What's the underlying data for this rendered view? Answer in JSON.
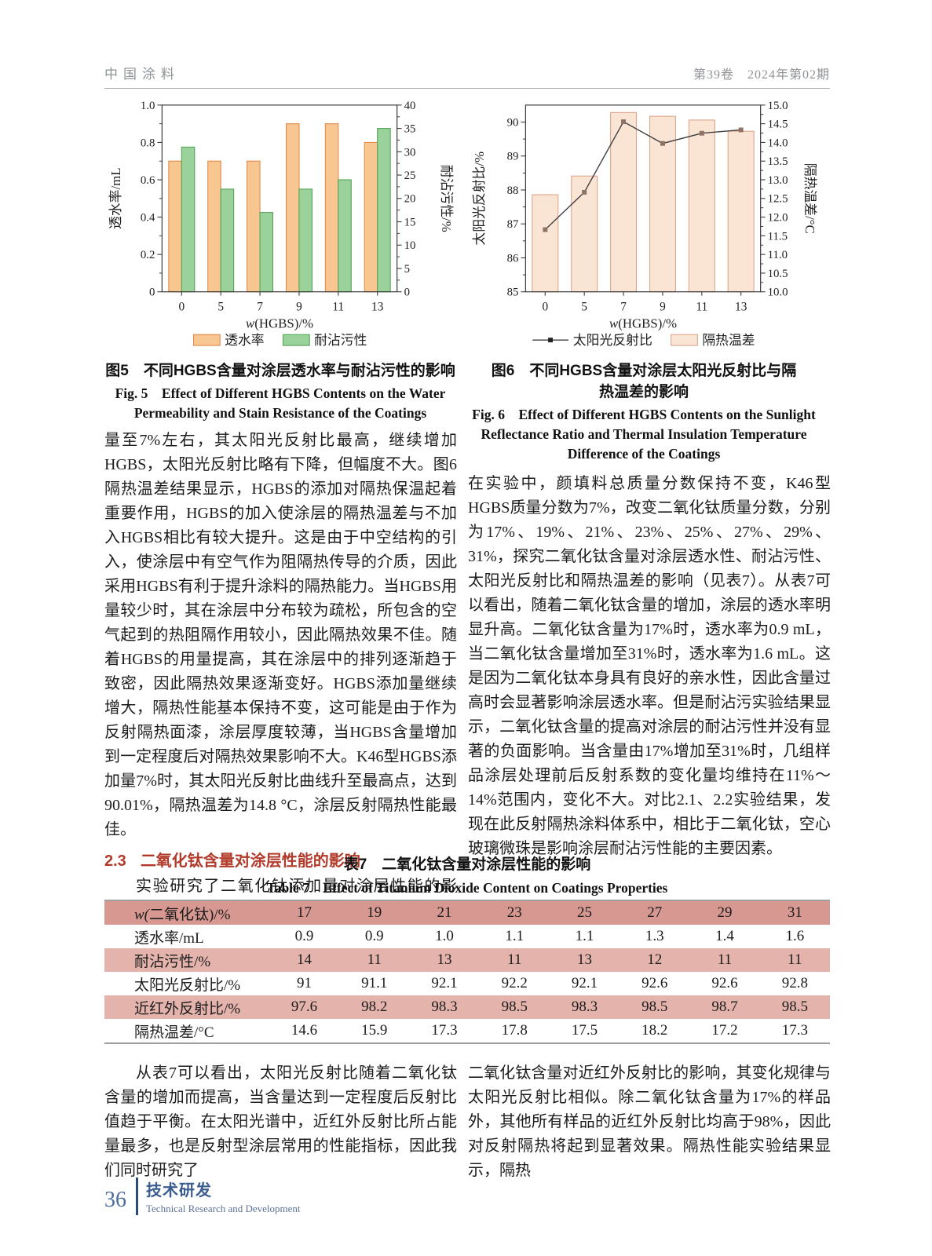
{
  "page_header": {
    "journal": "中国涂料",
    "issue": "第39卷　2024年第02期"
  },
  "chart_data": [
    {
      "id": "fig5",
      "type": "bar",
      "caption_cn": "图5　不同HGBS含量对涂层透水率与耐沾污性的影响",
      "caption_en": "Fig. 5　Effect of Different HGBS Contents on the Water Permeability and Stain Resistance of the Coatings",
      "categories": [
        "0",
        "5",
        "7",
        "9",
        "11",
        "13"
      ],
      "xlabel": "w(HGBS)/%",
      "left_axis": {
        "label": "透水率/mL",
        "min": 0,
        "max": 1.0,
        "tick_step": 0.2,
        "decimals": 1
      },
      "right_axis": {
        "label": "耐沾污性/%",
        "min": 0,
        "max": 40,
        "tick_step": 5,
        "decimals": 0
      },
      "grid": false,
      "legend_position": "bottom",
      "series": [
        {
          "name": "透水率",
          "type": "bar",
          "axis": "left",
          "values": [
            0.7,
            0.7,
            0.7,
            0.9,
            0.9,
            0.8
          ],
          "fill": "#F8C690",
          "stroke": "#E08B4C"
        },
        {
          "name": "耐沾污性",
          "type": "bar",
          "axis": "right",
          "values": [
            31,
            22,
            17,
            22,
            24,
            35
          ],
          "fill": "#9BD29B",
          "stroke": "#55A457"
        }
      ]
    },
    {
      "id": "fig6",
      "type": "bar+line",
      "caption_cn": "图6　不同HGBS含量对涂层太阳光反射比与隔热温差的影响",
      "caption_en": "Fig. 6　Effect of Different HGBS Contents on the Sunlight Reflectance Ratio and Thermal Insulation Temperature Difference of the Coatings",
      "categories": [
        "0",
        "5",
        "7",
        "9",
        "11",
        "13"
      ],
      "xlabel": "w(HGBS)/%",
      "left_axis": {
        "label": "太阳光反射比/%",
        "min": 85,
        "max": 90.5,
        "tick_step": 1,
        "tick_max": 90,
        "decimals": 0
      },
      "right_axis": {
        "label": "隔热温差/°C",
        "min": 10,
        "max": 15,
        "tick_step": 0.5,
        "decimals": 1
      },
      "grid": false,
      "legend_position": "bottom",
      "series": [
        {
          "name": "太阳光反射比",
          "type": "line",
          "axis": "left",
          "values": [
            86.83,
            87.93,
            90.01,
            89.37,
            89.67,
            89.77
          ],
          "stroke": "#3F3F3F",
          "marker_fill": "#8D7265"
        },
        {
          "name": "隔热温差",
          "type": "bar",
          "axis": "right",
          "values": [
            12.6,
            13.1,
            14.8,
            14.7,
            14.6,
            14.3
          ],
          "fill": "#FAE4D4",
          "stroke": "#DCA58B"
        }
      ]
    }
  ],
  "sections": {
    "col1_p1": "量至7%左右，其太阳光反射比最高，继续增加HGBS，太阳光反射比略有下降，但幅度不大。图6隔热温差结果显示，HGBS的添加对隔热保温起着重要作用，HGBS的加入使涂层的隔热温差与不加入HGBS相比有较大提升。这是由于中空结构的引入，使涂层中有空气作为阻隔热传导的介质，因此采用HGBS有利于提升涂料的隔热能力。当HGBS用量较少时，其在涂层中分布较为疏松，所包含的空气起到的热阻隔作用较小，因此隔热效果不佳。随着HGBS的用量提高，其在涂层中的排列逐渐趋于致密，因此隔热效果逐渐变好。HGBS添加量继续增大，隔热性能基本保持不变，这可能是由于作为反射隔热面漆，涂层厚度较薄，当HGBS含量增加到一定程度后对隔热效果影响不大。K46型HGBS添加量7%时，其太阳光反射比曲线升至最高点，达到90.01%，隔热温差为14.8 °C，涂层反射隔热性能最佳。",
    "heading_num": "2.3",
    "heading_title": "二氧化钛含量对涂层性能的影响",
    "col1_p2": "实验研究了二氧化钛添加量对涂层性能的影响。",
    "col2_p1": "在实验中，颜填料总质量分数保持不变，K46型HGBS质量分数为7%，改变二氧化钛质量分数，分别为17%、19%、21%、23%、25%、27%、29%、31%，探究二氧化钛含量对涂层透水性、耐沾污性、太阳光反射比和隔热温差的影响（见表7）。从表7可以看出，随着二氧化钛含量的增加，涂层的透水率明显升高。二氧化钛含量为17%时，透水率为0.9 mL，当二氧化钛含量增加至31%时，透水率为1.6 mL。这是因为二氧化钛本身具有良好的亲水性，因此含量过高时会显著影响涂层透水率。但是耐沾污实验结果显示，二氧化钛含量的提高对涂层的耐沾污性并没有显著的负面影响。当含量由17%增加至31%时，几组样品涂层处理前后反射系数的变化量均维持在11%～14%范围内，变化不大。对比2.1、2.2实验结果，发现在此反射隔热涂料体系中，相比于二氧化钛，空心玻璃微珠是影响涂层耐沾污性能的主要因素。",
    "bottom_left": "从表7可以看出，太阳光反射比随着二氧化钛含量的增加而提高，当含量达到一定程度后反射比值趋于平衡。在太阳光谱中，近红外反射比所占能量最多，也是反射型涂层常用的性能指标，因此我们同时研究了",
    "bottom_right": "二氧化钛含量对近红外反射比的影响，其变化规律与太阳光反射比相似。除二氧化钛含量为17%的样品外，其他所有样品的近红外反射比均高于98%，因此对反射隔热将起到显著效果。隔热性能实验结果显示，隔热"
  },
  "table7": {
    "caption_cn": "表7　二氧化钛含量对涂层性能的影响",
    "caption_en": "Table 7　Effect of Titanium Dioxide Content on Coatings Properties",
    "header": {
      "label": "w(二氧化钛)/%",
      "values": [
        "17",
        "19",
        "21",
        "23",
        "25",
        "27",
        "29",
        "31"
      ]
    },
    "rows": [
      {
        "label": "透水率/mL",
        "values": [
          "0.9",
          "0.9",
          "1.0",
          "1.1",
          "1.1",
          "1.3",
          "1.4",
          "1.6"
        ]
      },
      {
        "label": "耐沾污性/%",
        "values": [
          "14",
          "11",
          "13",
          "11",
          "13",
          "12",
          "11",
          "11"
        ]
      },
      {
        "label": "太阳光反射比/%",
        "values": [
          "91",
          "91.1",
          "92.1",
          "92.2",
          "92.1",
          "92.6",
          "92.6",
          "92.8"
        ]
      },
      {
        "label": "近红外反射比/%",
        "values": [
          "97.6",
          "98.2",
          "98.3",
          "98.5",
          "98.3",
          "98.5",
          "98.7",
          "98.5"
        ]
      },
      {
        "label": "隔热温差/°C",
        "values": [
          "14.6",
          "15.9",
          "17.3",
          "17.8",
          "17.5",
          "18.2",
          "17.2",
          "17.3"
        ]
      }
    ],
    "colors": {
      "header_bg": "#D69890",
      "row_pink_bg": "#E4B3AB"
    }
  },
  "page_footer": {
    "page_number": "36",
    "section_cn": "技术研发",
    "section_en": "Technical Research and Development"
  },
  "colors": {
    "heading_red": "#B23A2B",
    "footer_blue": "#3B5C8E"
  }
}
